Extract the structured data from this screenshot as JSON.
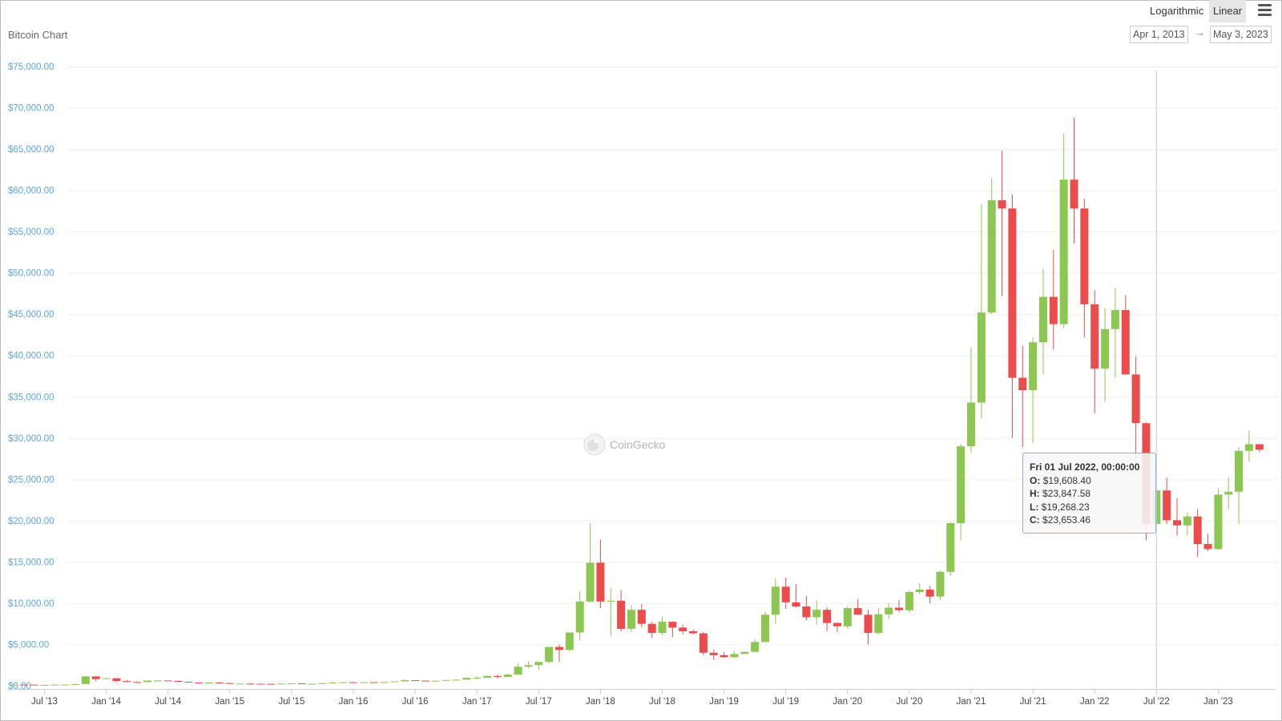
{
  "header": {
    "title": "Bitcoin Chart",
    "scale_log_label": "Logarithmic",
    "scale_linear_label": "Linear",
    "menu_icon": "hamburger-menu-icon",
    "date_from": "Apr 1, 2013",
    "date_arrow": "→",
    "date_to": "May 3, 2023"
  },
  "watermark": {
    "text": "CoinGecko",
    "icon": "gecko-logo-icon"
  },
  "tooltip": {
    "date": "Fri 01 Jul 2022, 00:00:00",
    "o_label": "O:",
    "o_value": "$19,608.40",
    "h_label": "H:",
    "h_value": "$23,847.58",
    "l_label": "L:",
    "l_value": "$19,268.23",
    "c_label": "C:",
    "c_value": "$23,653.46"
  },
  "colors": {
    "up": "#8cc751",
    "down": "#eb4d4d",
    "yaxis": "#5ea5e8",
    "grid": "#efefef",
    "crosshair": "#cccccc",
    "tooltip_border": "#7cb5ec"
  },
  "chart_data": {
    "type": "candlestick",
    "title": "Bitcoin Chart",
    "period": "monthly",
    "y_scale": "linear",
    "ylim": [
      0,
      75000
    ],
    "yticks": [
      "$0.00",
      "$5,000.00",
      "$10,000.00",
      "$15,000.00",
      "$20,000.00",
      "$25,000.00",
      "$30,000.00",
      "$35,000.00",
      "$40,000.00",
      "$45,000.00",
      "$50,000.00",
      "$55,000.00",
      "$60,000.00",
      "$65,000.00",
      "$70,000.00",
      "$75,000.00"
    ],
    "xticks": [
      {
        "date": "2013-07",
        "label": "Jul '13"
      },
      {
        "date": "2014-01",
        "label": "Jan '14"
      },
      {
        "date": "2014-07",
        "label": "Jul '14"
      },
      {
        "date": "2015-01",
        "label": "Jan '15"
      },
      {
        "date": "2015-07",
        "label": "Jul '15"
      },
      {
        "date": "2016-01",
        "label": "Jan '16"
      },
      {
        "date": "2016-07",
        "label": "Jul '16"
      },
      {
        "date": "2017-01",
        "label": "Jan '17"
      },
      {
        "date": "2017-07",
        "label": "Jul '17"
      },
      {
        "date": "2018-01",
        "label": "Jan '18"
      },
      {
        "date": "2018-07",
        "label": "Jul '18"
      },
      {
        "date": "2019-01",
        "label": "Jan '19"
      },
      {
        "date": "2019-07",
        "label": "Jul '19"
      },
      {
        "date": "2020-01",
        "label": "Jan '20"
      },
      {
        "date": "2020-07",
        "label": "Jul '20"
      },
      {
        "date": "2021-01",
        "label": "Jan '21"
      },
      {
        "date": "2021-07",
        "label": "Jul '21"
      },
      {
        "date": "2022-01",
        "label": "Jan '22"
      },
      {
        "date": "2022-07",
        "label": "Jul '22"
      },
      {
        "date": "2023-01",
        "label": "Jan '23"
      }
    ],
    "highlighted": "2022-07",
    "series": [
      {
        "columns": [
          "date",
          "open",
          "high",
          "low",
          "close"
        ],
        "values": [
          [
            "2013-04",
            135,
            266,
            50,
            139
          ],
          [
            "2013-05",
            139,
            140,
            97,
            129
          ],
          [
            "2013-06",
            129,
            130,
            95,
            97
          ],
          [
            "2013-07",
            97,
            113,
            65,
            106
          ],
          [
            "2013-08",
            106,
            140,
            100,
            140
          ],
          [
            "2013-09",
            140,
            145,
            120,
            140
          ],
          [
            "2013-10",
            140,
            220,
            110,
            205
          ],
          [
            "2013-11",
            205,
            1150,
            200,
            1130
          ],
          [
            "2013-12",
            1130,
            1160,
            520,
            800
          ],
          [
            "2014-01",
            800,
            1000,
            790,
            900
          ],
          [
            "2014-02",
            900,
            940,
            480,
            560
          ],
          [
            "2014-03",
            560,
            700,
            440,
            450
          ],
          [
            "2014-04",
            450,
            545,
            340,
            445
          ],
          [
            "2014-05",
            445,
            625,
            420,
            630
          ],
          [
            "2014-06",
            630,
            680,
            530,
            640
          ],
          [
            "2014-07",
            640,
            650,
            570,
            585
          ],
          [
            "2014-08",
            585,
            600,
            460,
            480
          ],
          [
            "2014-09",
            480,
            490,
            375,
            390
          ],
          [
            "2014-10",
            390,
            420,
            275,
            340
          ],
          [
            "2014-11",
            340,
            460,
            310,
            380
          ],
          [
            "2014-12",
            380,
            390,
            290,
            320
          ],
          [
            "2015-01",
            320,
            320,
            170,
            220
          ],
          [
            "2015-02",
            220,
            280,
            210,
            255
          ],
          [
            "2015-03",
            255,
            300,
            240,
            245
          ],
          [
            "2015-04",
            245,
            260,
            210,
            235
          ],
          [
            "2015-05",
            235,
            245,
            225,
            230
          ],
          [
            "2015-06",
            230,
            265,
            220,
            265
          ],
          [
            "2015-07",
            265,
            320,
            255,
            285
          ],
          [
            "2015-08",
            285,
            285,
            200,
            230
          ],
          [
            "2015-09",
            230,
            245,
            225,
            235
          ],
          [
            "2015-10",
            235,
            330,
            235,
            315
          ],
          [
            "2015-11",
            315,
            490,
            300,
            375
          ],
          [
            "2015-12",
            375,
            465,
            350,
            430
          ],
          [
            "2016-01",
            430,
            460,
            360,
            370
          ],
          [
            "2016-02",
            370,
            440,
            370,
            435
          ],
          [
            "2016-03",
            435,
            440,
            400,
            415
          ],
          [
            "2016-04",
            415,
            470,
            410,
            450
          ],
          [
            "2016-05",
            450,
            540,
            440,
            530
          ],
          [
            "2016-06",
            530,
            780,
            520,
            670
          ],
          [
            "2016-07",
            670,
            680,
            590,
            625
          ],
          [
            "2016-08",
            625,
            630,
            540,
            575
          ],
          [
            "2016-09",
            575,
            630,
            570,
            610
          ],
          [
            "2016-10",
            610,
            710,
            600,
            700
          ],
          [
            "2016-11",
            700,
            750,
            690,
            740
          ],
          [
            "2016-12",
            740,
            980,
            740,
            965
          ],
          [
            "2017-01",
            965,
            1150,
            750,
            970
          ],
          [
            "2017-02",
            970,
            1200,
            920,
            1190
          ],
          [
            "2017-03",
            1190,
            1350,
            900,
            1080
          ],
          [
            "2017-04",
            1080,
            1430,
            1060,
            1350
          ],
          [
            "2017-05",
            1350,
            2750,
            1340,
            2300
          ],
          [
            "2017-06",
            2300,
            3000,
            2100,
            2500
          ],
          [
            "2017-07",
            2500,
            2900,
            1900,
            2880
          ],
          [
            "2017-08",
            2880,
            4700,
            2700,
            4700
          ],
          [
            "2017-09",
            4700,
            5000,
            2900,
            4340
          ],
          [
            "2017-10",
            4340,
            6450,
            4170,
            6450
          ],
          [
            "2017-11",
            6450,
            11500,
            5500,
            10200
          ],
          [
            "2017-12",
            10200,
            19700,
            10100,
            14900
          ],
          [
            "2018-01",
            14900,
            17700,
            9400,
            10200
          ],
          [
            "2018-02",
            10200,
            11800,
            6000,
            10300
          ],
          [
            "2018-03",
            10300,
            11600,
            6600,
            6900
          ],
          [
            "2018-04",
            6900,
            9800,
            6500,
            9200
          ],
          [
            "2018-05",
            9200,
            9900,
            7100,
            7500
          ],
          [
            "2018-06",
            7500,
            7750,
            5800,
            6400
          ],
          [
            "2018-07",
            6400,
            8450,
            6100,
            7750
          ],
          [
            "2018-08",
            7750,
            7800,
            5900,
            7050
          ],
          [
            "2018-09",
            7050,
            7400,
            6200,
            6600
          ],
          [
            "2018-10",
            6600,
            6800,
            6200,
            6350
          ],
          [
            "2018-11",
            6350,
            6500,
            3700,
            4000
          ],
          [
            "2018-12",
            4000,
            4400,
            3150,
            3700
          ],
          [
            "2019-01",
            3700,
            4100,
            3400,
            3450
          ],
          [
            "2019-02",
            3450,
            4200,
            3400,
            3850
          ],
          [
            "2019-03",
            3850,
            4150,
            3850,
            4100
          ],
          [
            "2019-04",
            4100,
            5600,
            4100,
            5300
          ],
          [
            "2019-05",
            5300,
            9000,
            5300,
            8600
          ],
          [
            "2019-06",
            8600,
            13000,
            7500,
            12000
          ],
          [
            "2019-07",
            12000,
            13100,
            9300,
            10100
          ],
          [
            "2019-08",
            10100,
            12300,
            9500,
            9600
          ],
          [
            "2019-09",
            9600,
            10900,
            7900,
            8300
          ],
          [
            "2019-10",
            8300,
            10300,
            7400,
            9200
          ],
          [
            "2019-11",
            9200,
            9500,
            6600,
            7600
          ],
          [
            "2019-12",
            7600,
            7700,
            6500,
            7200
          ],
          [
            "2020-01",
            7200,
            9600,
            6900,
            9400
          ],
          [
            "2020-02",
            9400,
            10500,
            8600,
            8600
          ],
          [
            "2020-03",
            8600,
            9200,
            5000,
            6400
          ],
          [
            "2020-04",
            6400,
            9400,
            6200,
            8650
          ],
          [
            "2020-05",
            8650,
            10000,
            8100,
            9450
          ],
          [
            "2020-06",
            9450,
            10400,
            8900,
            9150
          ],
          [
            "2020-07",
            9150,
            11500,
            8900,
            11350
          ],
          [
            "2020-08",
            11350,
            12400,
            11100,
            11650
          ],
          [
            "2020-09",
            11650,
            12100,
            10000,
            10800
          ],
          [
            "2020-10",
            10800,
            14000,
            10400,
            13800
          ],
          [
            "2020-11",
            13800,
            19800,
            13300,
            19700
          ],
          [
            "2020-12",
            19700,
            29300,
            17600,
            29000
          ],
          [
            "2021-01",
            29000,
            41000,
            28200,
            34300
          ],
          [
            "2021-02",
            34300,
            58300,
            32400,
            45200
          ],
          [
            "2021-03",
            45200,
            61500,
            45000,
            58800
          ],
          [
            "2021-04",
            58800,
            64800,
            47200,
            57800
          ],
          [
            "2021-05",
            57800,
            59500,
            30000,
            37300
          ],
          [
            "2021-06",
            37300,
            41200,
            28900,
            35800
          ],
          [
            "2021-07",
            35800,
            42200,
            29400,
            41600
          ],
          [
            "2021-08",
            41600,
            50500,
            37700,
            47100
          ],
          [
            "2021-09",
            47100,
            52800,
            40700,
            43800
          ],
          [
            "2021-10",
            43800,
            66900,
            43300,
            61300
          ],
          [
            "2021-11",
            61300,
            68800,
            53600,
            57800
          ],
          [
            "2021-12",
            57800,
            59000,
            42200,
            46200
          ],
          [
            "2022-01",
            46200,
            47900,
            33000,
            38400
          ],
          [
            "2022-02",
            38400,
            45700,
            34400,
            43200
          ],
          [
            "2022-03",
            43200,
            48200,
            37300,
            45500
          ],
          [
            "2022-04",
            45500,
            47300,
            37800,
            37700
          ],
          [
            "2022-05",
            37700,
            39900,
            26700,
            31800
          ],
          [
            "2022-06",
            31800,
            31900,
            17600,
            19600
          ],
          [
            "2022-07",
            19608.4,
            23847.58,
            19268.23,
            23653.46
          ],
          [
            "2022-08",
            23653.46,
            25200,
            19600,
            20050
          ],
          [
            "2022-09",
            20050,
            22700,
            18200,
            19420
          ],
          [
            "2022-10",
            19420,
            21000,
            18200,
            20500
          ],
          [
            "2022-11",
            20500,
            21400,
            15600,
            17170
          ],
          [
            "2022-12",
            17170,
            18400,
            16300,
            16550
          ],
          [
            "2023-01",
            16550,
            23900,
            16500,
            23150
          ],
          [
            "2023-02",
            23150,
            25200,
            21400,
            23500
          ],
          [
            "2023-03",
            23500,
            28900,
            19600,
            28450
          ],
          [
            "2023-04",
            28450,
            30900,
            27100,
            29250
          ],
          [
            "2023-05",
            29250,
            29300,
            28300,
            28600
          ]
        ]
      }
    ]
  }
}
